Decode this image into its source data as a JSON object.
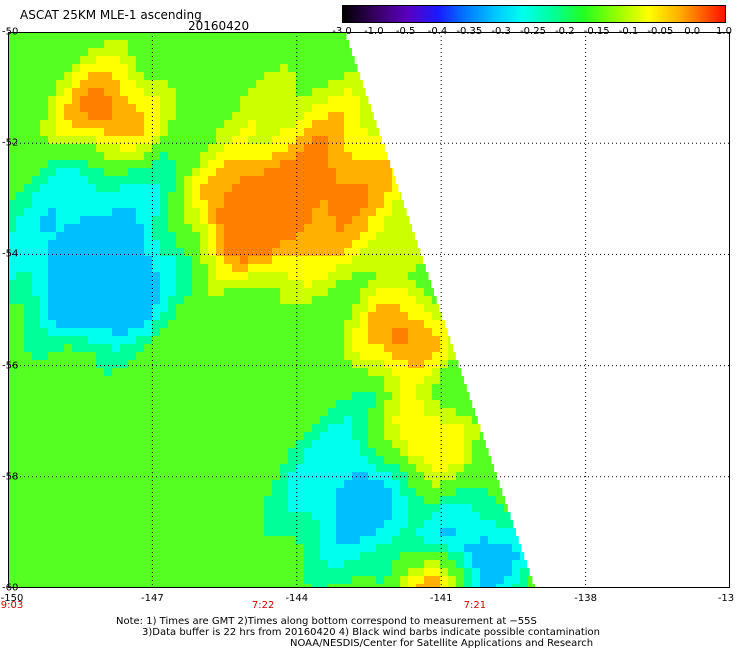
{
  "header": {
    "title": "ASCAT 25KM MLE-1 ascending",
    "date": "20160420"
  },
  "colorbar": {
    "labels": [
      "-3.0",
      "-1.0",
      "-0.5",
      "-0.4",
      "-0.35",
      "-0.3",
      "-0.25",
      "-0.2",
      "-0.15",
      "-0.1",
      "-0.05",
      "0.0",
      "1.0"
    ]
  },
  "map": {
    "y_axis": {
      "labels": [
        "-50",
        "-52",
        "-54",
        "-56",
        "-58",
        "-60"
      ],
      "range": [
        -60,
        -50
      ]
    },
    "x_axis": {
      "labels": [
        "-150",
        "-147",
        "-144",
        "-141",
        "-138",
        "-13"
      ],
      "range": [
        -150,
        -135
      ]
    },
    "times": [
      {
        "label": "9:03",
        "lon": -150
      },
      {
        "label": "7:22",
        "lon": -144.7
      },
      {
        "label": "7:21",
        "lon": -140.3
      }
    ]
  },
  "notes": {
    "line1": "Note: 1) Times are GMT 2)Times along bottom correspond to measurement at −55S",
    "line2": "3)Data buffer is 22 hrs from 20160420 4) Black wind barbs indicate possible contamination",
    "line3": "NOAA/NESDIS/Center for Satellite Applications and Research"
  },
  "colors": {
    "background": "#ffffff",
    "grid": "#000000",
    "time_label": "#cc0000"
  }
}
